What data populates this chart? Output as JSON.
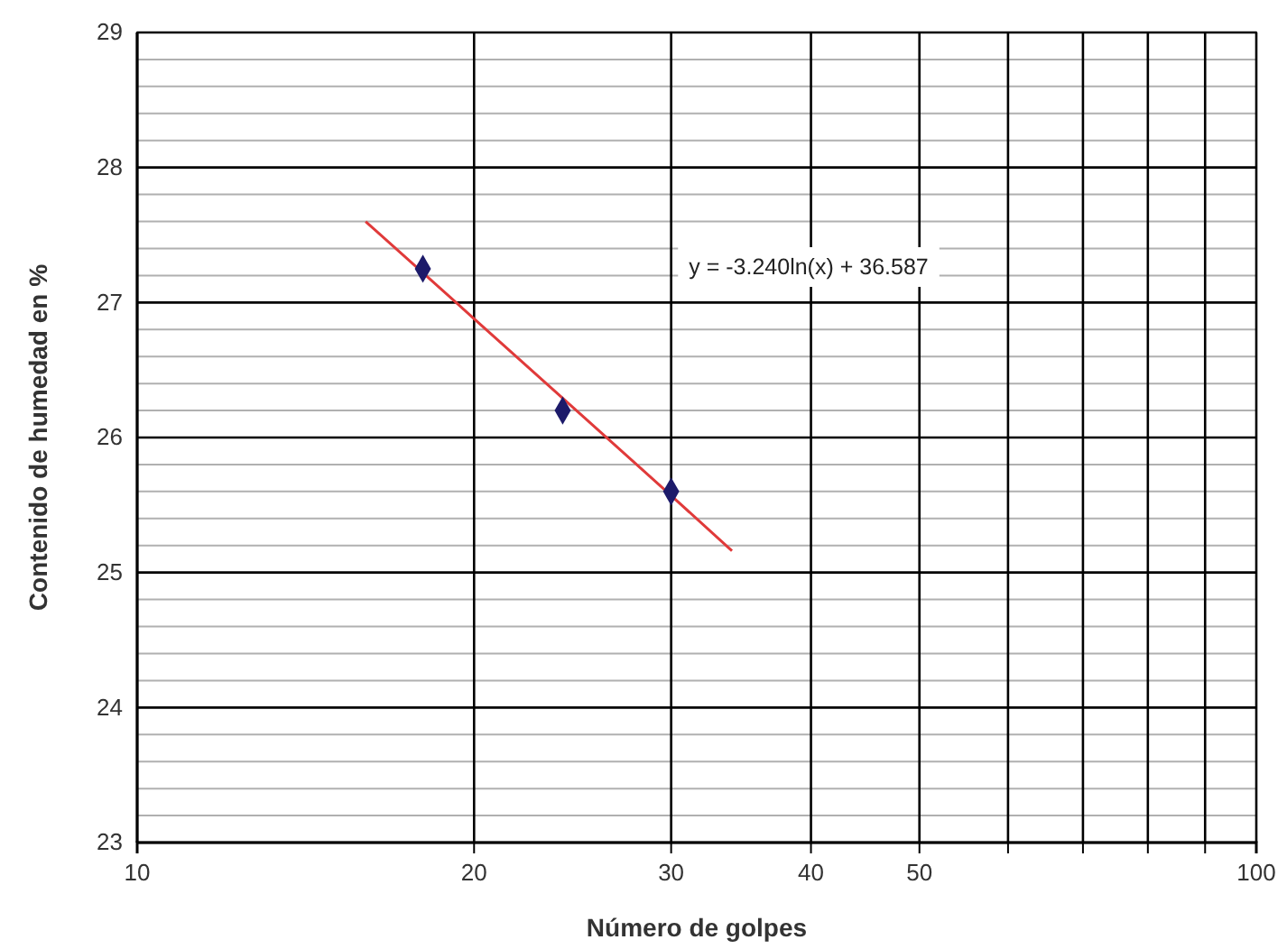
{
  "chart_data": {
    "type": "scatter",
    "xlabel": "Número de golpes",
    "ylabel": "Contenido de humedad en %",
    "log": "x",
    "grid": true,
    "marker": "diamond",
    "xlim": [
      10,
      100
    ],
    "xticks": [
      10,
      20,
      30,
      40,
      50,
      {
        "value": 60,
        "label": null
      },
      {
        "value": 70,
        "label": null
      },
      {
        "value": 80,
        "label": null
      },
      {
        "value": 90,
        "label": null
      },
      100
    ],
    "ylim": [
      23,
      29
    ],
    "yticks": [
      23,
      {
        "value": 23.2,
        "label": null
      },
      {
        "value": 23.4,
        "label": null
      },
      {
        "value": 23.6,
        "label": null
      },
      {
        "value": 23.8,
        "label": null
      },
      24,
      {
        "value": 24.2,
        "label": null
      },
      {
        "value": 24.4,
        "label": null
      },
      {
        "value": 24.6,
        "label": null
      },
      {
        "value": 24.8,
        "label": null
      },
      25,
      {
        "value": 25.2,
        "label": null
      },
      {
        "value": 25.4,
        "label": null
      },
      {
        "value": 25.6,
        "label": null
      },
      {
        "value": 25.8,
        "label": null
      },
      26,
      {
        "value": 26.2,
        "label": null
      },
      {
        "value": 26.4,
        "label": null
      },
      {
        "value": 26.6,
        "label": null
      },
      {
        "value": 26.8,
        "label": null
      },
      27,
      {
        "value": 27.2,
        "label": null
      },
      {
        "value": 27.4,
        "label": null
      },
      {
        "value": 27.6,
        "label": null
      },
      {
        "value": 27.8,
        "label": null
      },
      28,
      {
        "value": 28.2,
        "label": null
      },
      {
        "value": 28.4,
        "label": null
      },
      {
        "value": 28.6,
        "label": null
      },
      {
        "value": 28.8,
        "label": null
      },
      29
    ],
    "series": [
      {
        "type": "scatter",
        "color": "#1c1a6a",
        "x": [
          18,
          24,
          30
        ],
        "values": [
          27.25,
          26.2,
          25.6
        ]
      },
      {
        "type": "line",
        "color": "#e03a3a",
        "marker": "none",
        "x": [
          16,
          20,
          25,
          30,
          34
        ],
        "values": [
          27.6,
          26.88,
          26.16,
          25.57,
          25.16
        ]
      }
    ],
    "annotations": [
      "y = -3.240ln(x) + 36.587"
    ]
  }
}
